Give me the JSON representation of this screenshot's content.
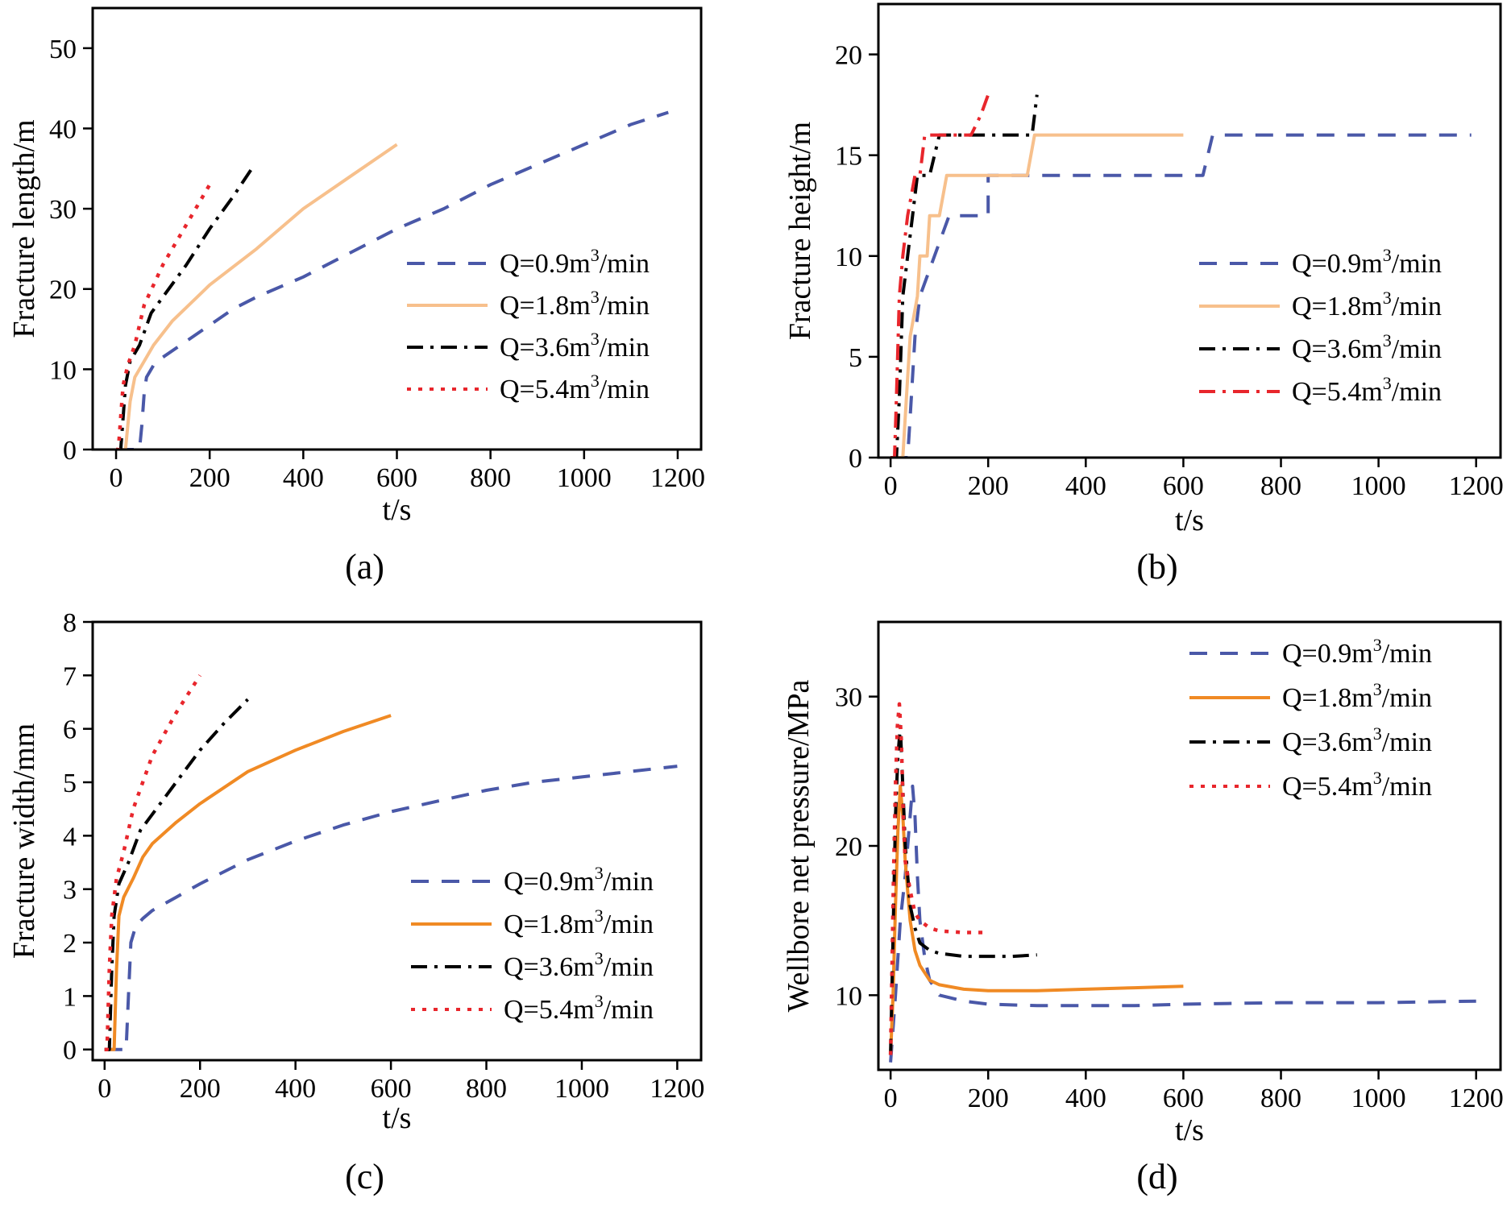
{
  "figure": {
    "colors": {
      "q09": "#4a58a8",
      "q18_light": "#f7c08c",
      "q18_dark": "#f08a24",
      "q36": "#000000",
      "q54": "#e8262c"
    }
  },
  "chart_data": [
    {
      "type": "line",
      "panel_label": "(a)",
      "xlabel": "t/s",
      "ylabel": "Fracture length/m",
      "xlim": [
        -50,
        1250
      ],
      "ylim": [
        0,
        55
      ],
      "xticks": [
        0,
        200,
        400,
        600,
        800,
        1000,
        1200
      ],
      "yticks": [
        0,
        10,
        20,
        30,
        40,
        50
      ],
      "legend_position": "center-right",
      "series": [
        {
          "name": "Q=0.9m³/min",
          "label_main": "Q=0.9m",
          "label_sup": "3",
          "label_tail": "/min",
          "style": "dashed",
          "color_key": "q09",
          "x": [
            0,
            50,
            55,
            60,
            65,
            80,
            100,
            150,
            200,
            250,
            300,
            400,
            500,
            600,
            700,
            800,
            900,
            1000,
            1100,
            1180
          ],
          "y": [
            0,
            0,
            3,
            7,
            9,
            10.5,
            11.5,
            13.5,
            15.5,
            17.5,
            19,
            21.5,
            24.5,
            27.5,
            30,
            33,
            35.5,
            38,
            40.5,
            42
          ]
        },
        {
          "name": "Q=1.8m³/min",
          "label_main": "Q=1.8m",
          "label_sup": "3",
          "label_tail": "/min",
          "style": "solid",
          "color_key": "q18_light",
          "x": [
            0,
            20,
            25,
            30,
            40,
            55,
            80,
            120,
            200,
            300,
            400,
            500,
            600
          ],
          "y": [
            0,
            0,
            3,
            6,
            9,
            10.5,
            13,
            16,
            20.5,
            25,
            30,
            34,
            38
          ]
        },
        {
          "name": "Q=3.6m³/min",
          "label_main": "Q=3.6m",
          "label_sup": "3",
          "label_tail": "/min",
          "style": "dashdot",
          "color_key": "q36",
          "x": [
            0,
            10,
            15,
            20,
            30,
            50,
            75,
            100,
            150,
            200,
            250,
            290
          ],
          "y": [
            0,
            0,
            4,
            8,
            11,
            13,
            17,
            19,
            23,
            27.5,
            31.5,
            35
          ]
        },
        {
          "name": "Q=5.4m³/min",
          "label_main": "Q=5.4m",
          "label_sup": "3",
          "label_tail": "/min",
          "style": "dotted",
          "color_key": "q54",
          "x": [
            0,
            5,
            10,
            15,
            25,
            40,
            60,
            100,
            150,
            200
          ],
          "y": [
            0,
            0,
            4,
            8,
            10.5,
            13,
            18,
            23,
            28,
            33
          ]
        }
      ]
    },
    {
      "type": "line",
      "panel_label": "(b)",
      "xlabel": "t/s",
      "ylabel": "Fracture height/m",
      "xlim": [
        -25,
        1250
      ],
      "ylim": [
        0,
        22.5
      ],
      "xticks": [
        0,
        200,
        400,
        600,
        800,
        1000,
        1200
      ],
      "yticks": [
        0,
        5,
        10,
        15,
        20
      ],
      "legend_position": "center-right",
      "series": [
        {
          "name": "Q=0.9m³/min",
          "label_main": "Q=0.9m",
          "label_sup": "3",
          "label_tail": "/min",
          "style": "dashed",
          "color_key": "q09",
          "x": [
            0,
            35,
            40,
            50,
            60,
            60,
            90,
            90,
            120,
            120,
            200,
            200,
            220,
            220,
            640,
            640,
            660,
            1190
          ],
          "y": [
            0,
            0,
            2,
            6,
            8,
            8,
            10,
            10,
            12,
            12,
            12,
            14,
            14,
            14,
            14,
            14,
            16,
            16
          ]
        },
        {
          "name": "Q=1.8m³/min",
          "label_main": "Q=1.8m",
          "label_sup": "3",
          "label_tail": "/min",
          "style": "solid",
          "color_key": "q18_light",
          "x": [
            0,
            25,
            30,
            40,
            55,
            60,
            75,
            80,
            100,
            115,
            120,
            280,
            295,
            600
          ],
          "y": [
            0,
            0,
            2,
            6,
            8,
            10,
            10,
            12,
            12,
            14,
            14,
            14,
            16,
            16
          ]
        },
        {
          "name": "Q=3.6m³/min",
          "label_main": "Q=3.6m",
          "label_sup": "3",
          "label_tail": "/min",
          "style": "dashdot",
          "color_key": "q36",
          "x": [
            0,
            12,
            18,
            25,
            35,
            45,
            55,
            60,
            80,
            90,
            100,
            105,
            290,
            295,
            300
          ],
          "y": [
            0,
            0,
            3,
            8,
            10,
            12,
            14,
            14,
            14,
            15,
            16,
            16,
            16,
            17,
            18
          ]
        },
        {
          "name": "Q=5.4m³/min",
          "label_main": "Q=5.4m",
          "label_sup": "3",
          "label_tail": "/min",
          "style": "dashdot",
          "color_key": "q54",
          "x": [
            0,
            8,
            12,
            18,
            25,
            35,
            50,
            60,
            70,
            150,
            165,
            185,
            200
          ],
          "y": [
            0,
            0,
            3,
            8,
            10,
            12,
            14,
            14,
            16,
            16,
            16,
            17,
            18
          ]
        }
      ]
    },
    {
      "type": "line",
      "panel_label": "(c)",
      "xlabel": "t/s",
      "ylabel": "Fracture width/mm",
      "xlim": [
        -25,
        1250
      ],
      "ylim": [
        -0.2,
        8
      ],
      "xticks": [
        0,
        200,
        400,
        600,
        800,
        1000,
        1200
      ],
      "yticks": [
        0,
        1,
        2,
        3,
        4,
        5,
        6,
        7,
        8
      ],
      "legend_position": "center-right",
      "series": [
        {
          "name": "Q=0.9m³/min",
          "label_main": "Q=0.9m",
          "label_sup": "3",
          "label_tail": "/min",
          "style": "dashed",
          "color_key": "q09",
          "x": [
            0,
            45,
            50,
            55,
            65,
            80,
            100,
            150,
            200,
            300,
            400,
            500,
            600,
            700,
            800,
            900,
            1000,
            1100,
            1200
          ],
          "y": [
            0,
            0,
            1,
            2,
            2.3,
            2.45,
            2.6,
            2.85,
            3.1,
            3.55,
            3.9,
            4.2,
            4.45,
            4.65,
            4.85,
            5.0,
            5.1,
            5.2,
            5.3
          ]
        },
        {
          "name": "Q=1.8m³/min",
          "label_main": "Q=1.8m",
          "label_sup": "3",
          "label_tail": "/min",
          "style": "solid",
          "color_key": "q18_dark",
          "x": [
            0,
            20,
            25,
            30,
            40,
            60,
            80,
            100,
            150,
            200,
            300,
            400,
            500,
            600
          ],
          "y": [
            0,
            0,
            1.5,
            2.5,
            2.85,
            3.2,
            3.6,
            3.85,
            4.25,
            4.6,
            5.2,
            5.6,
            5.95,
            6.25
          ]
        },
        {
          "name": "Q=3.6m³/min",
          "label_main": "Q=3.6m",
          "label_sup": "3",
          "label_tail": "/min",
          "style": "dashdot",
          "color_key": "q36",
          "x": [
            0,
            10,
            15,
            20,
            30,
            50,
            75,
            100,
            150,
            200,
            250,
            300
          ],
          "y": [
            0,
            0,
            1.5,
            2.5,
            3.1,
            3.5,
            4.1,
            4.4,
            5.0,
            5.6,
            6.1,
            6.55
          ]
        },
        {
          "name": "Q=5.4m³/min",
          "label_main": "Q=5.4m",
          "label_sup": "3",
          "label_tail": "/min",
          "style": "dotted",
          "color_key": "q54",
          "x": [
            0,
            5,
            10,
            15,
            25,
            40,
            60,
            100,
            150,
            200
          ],
          "y": [
            0,
            0,
            1.5,
            2.5,
            3.2,
            3.7,
            4.5,
            5.5,
            6.3,
            7.0
          ]
        }
      ]
    },
    {
      "type": "line",
      "panel_label": "(d)",
      "xlabel": "t/s",
      "ylabel": "Wellbore net pressure/MPa",
      "xlim": [
        -25,
        1250
      ],
      "ylim": [
        5,
        35
      ],
      "xticks": [
        0,
        200,
        400,
        600,
        800,
        1000,
        1200
      ],
      "yticks": [
        10,
        20,
        30
      ],
      "legend_position": "top-right",
      "series": [
        {
          "name": "Q=0.9m³/min",
          "label_main": "Q=0.9m",
          "label_sup": "3",
          "label_tail": "/min",
          "style": "dashed",
          "color_key": "q09",
          "x": [
            0,
            10,
            20,
            30,
            40,
            45,
            50,
            55,
            60,
            70,
            80,
            100,
            150,
            200,
            300,
            400,
            500,
            600,
            800,
            1000,
            1200
          ],
          "y": [
            5.5,
            10,
            15,
            18,
            22,
            24,
            22,
            18,
            15,
            12.5,
            11,
            10,
            9.6,
            9.4,
            9.3,
            9.3,
            9.3,
            9.4,
            9.5,
            9.5,
            9.6
          ]
        },
        {
          "name": "Q=1.8m³/min",
          "label_main": "Q=1.8m",
          "label_sup": "3",
          "label_tail": "/min",
          "style": "solid",
          "color_key": "q18_dark",
          "x": [
            0,
            5,
            10,
            15,
            20,
            25,
            30,
            35,
            40,
            50,
            60,
            80,
            100,
            150,
            200,
            300,
            400,
            500,
            600
          ],
          "y": [
            6,
            10,
            16,
            21,
            24,
            22,
            19,
            17,
            15,
            13,
            12,
            11,
            10.7,
            10.4,
            10.3,
            10.3,
            10.4,
            10.5,
            10.6
          ]
        },
        {
          "name": "Q=3.6m³/min",
          "label_main": "Q=3.6m",
          "label_sup": "3",
          "label_tail": "/min",
          "style": "dashdot",
          "color_key": "q36",
          "x": [
            0,
            5,
            10,
            15,
            20,
            25,
            30,
            40,
            50,
            60,
            80,
            100,
            150,
            200,
            250,
            300
          ],
          "y": [
            6,
            14,
            22,
            26,
            28,
            24,
            20,
            16,
            14.5,
            13.5,
            13,
            12.8,
            12.6,
            12.6,
            12.6,
            12.7
          ]
        },
        {
          "name": "Q=5.4m³/min",
          "label_main": "Q=5.4m",
          "label_sup": "3",
          "label_tail": "/min",
          "style": "dotted",
          "color_key": "q54",
          "x": [
            0,
            3,
            6,
            10,
            14,
            18,
            22,
            26,
            30,
            40,
            50,
            60,
            80,
            100,
            150,
            200
          ],
          "y": [
            6,
            12,
            18,
            24,
            28,
            29.5,
            27,
            22,
            19,
            17,
            15.5,
            15,
            14.5,
            14.3,
            14.2,
            14.2
          ]
        }
      ]
    }
  ]
}
